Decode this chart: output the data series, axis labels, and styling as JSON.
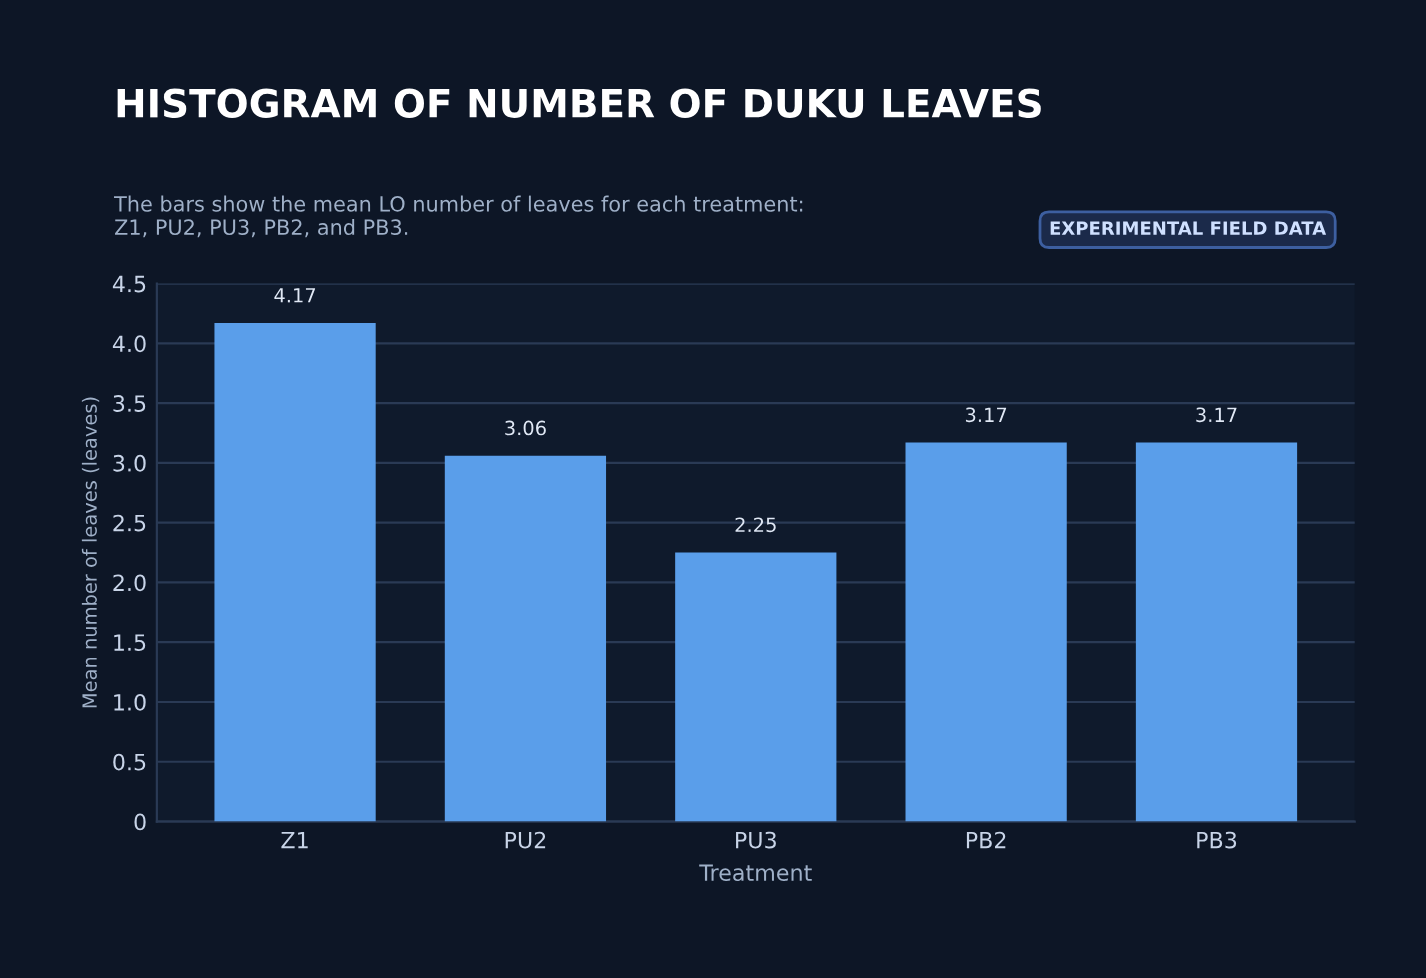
{
  "chart_data": {
    "type": "bar",
    "title": "HISTOGRAM OF NUMBER OF DUKU LEAVES",
    "subtitle": "The bars show the mean LO number of leaves for each treatment: Z1, PU2, PU3, PB2, and PB3.",
    "annotations": [
      "EXPERIMENTAL FIELD DATA"
    ],
    "xlabel": "Treatment",
    "ylabel": "Mean number of leaves (leaves)",
    "categories": [
      "Z1",
      "PU2",
      "PU3",
      "PB2",
      "PB3"
    ],
    "values": [
      4.17,
      3.06,
      2.25,
      3.17,
      3.17
    ],
    "color": "#5a9eea",
    "ylim": [
      0,
      4.5
    ],
    "yticks": [
      {
        "value": 0,
        "label": "0"
      },
      {
        "value": 0.5,
        "label": "0.5"
      },
      {
        "value": 1,
        "label": "1.0"
      },
      {
        "value": 1.5,
        "label": "1.5"
      },
      {
        "value": 2,
        "label": "2.0"
      },
      {
        "value": 2.5,
        "label": "2.5"
      },
      {
        "value": 3,
        "label": "3.0"
      },
      {
        "value": 3.5,
        "label": "3.5"
      },
      {
        "value": 4,
        "label": "4.0"
      },
      {
        "value": 4.5,
        "label": "4.5"
      }
    ],
    "grid": "y",
    "data_labels": true
  }
}
